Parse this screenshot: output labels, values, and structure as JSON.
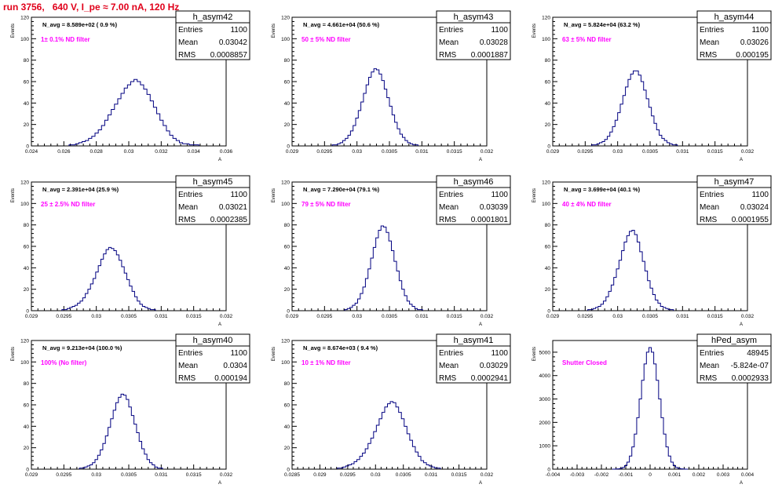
{
  "run_title": "run 3756,   640 V, I_pe ≈ 7.00 nA, 120 Hz",
  "colors": {
    "title": "#e0001a",
    "histogram": "#000080",
    "annotation": "#ff00ff",
    "axes": "#000000"
  },
  "chart_data": [
    {
      "type": "bar",
      "stat_title": "h_asym42",
      "entries": "1100",
      "mean": "0.03042",
      "rms": "0.0008857",
      "navg": "N_avg = 8.589e+02 ( 0.9 %)",
      "annotation": "1± 0.1% ND filter",
      "ylabel": "Events",
      "xlabel": "A",
      "xlim": [
        0.024,
        0.036
      ],
      "xticks": [
        "0.024",
        "0.026",
        "0.028",
        "0.03",
        "0.032",
        "0.034",
        "0.036"
      ],
      "ylim": [
        0,
        120
      ],
      "yticks": [
        "0",
        "20",
        "40",
        "60",
        "80",
        "100",
        "120"
      ],
      "bin_width": 0.0002,
      "counts": [
        1,
        1,
        2,
        3,
        4,
        5,
        7,
        9,
        12,
        15,
        19,
        24,
        29,
        34,
        39,
        44,
        49,
        54,
        57,
        60,
        62,
        60,
        57,
        53,
        48,
        42,
        36,
        30,
        24,
        19,
        14,
        10,
        7,
        5,
        3,
        2,
        2,
        1,
        1,
        1
      ]
    },
    {
      "type": "bar",
      "stat_title": "h_asym43",
      "entries": "1100",
      "mean": "0.03028",
      "rms": "0.0001887",
      "navg": "N_avg = 4.661e+04 (50.6 %)",
      "annotation": "50 ± 5% ND filter",
      "ylabel": "Events",
      "xlabel": "A",
      "xlim": [
        0.029,
        0.032
      ],
      "xticks": [
        "0.029",
        "0.0295",
        "0.03",
        "0.0305",
        "0.031",
        "0.0315",
        "0.032"
      ],
      "ylim": [
        0,
        120
      ],
      "yticks": [
        "0",
        "20",
        "40",
        "60",
        "80",
        "100",
        "120"
      ],
      "bin_width": 4e-05,
      "counts": [
        1,
        1,
        2,
        3,
        5,
        7,
        10,
        14,
        19,
        26,
        33,
        41,
        49,
        57,
        64,
        69,
        72,
        71,
        67,
        61,
        53,
        45,
        37,
        29,
        22,
        16,
        11,
        8,
        5,
        3,
        2,
        1,
        1
      ]
    },
    {
      "type": "bar",
      "stat_title": "h_asym44",
      "entries": "1100",
      "mean": "0.03026",
      "rms": "0.000195",
      "navg": "N_avg = 5.824e+04 (63.2 %)",
      "annotation": "63 ± 5% ND filter",
      "ylabel": "Events",
      "xlabel": "A",
      "xlim": [
        0.029,
        0.032
      ],
      "xticks": [
        "0.029",
        "0.0295",
        "0.03",
        "0.0305",
        "0.031",
        "0.0315",
        "0.032"
      ],
      "ylim": [
        0,
        120
      ],
      "yticks": [
        "0",
        "20",
        "40",
        "60",
        "80",
        "100",
        "120"
      ],
      "bin_width": 4e-05,
      "counts": [
        1,
        1,
        2,
        3,
        4,
        6,
        9,
        13,
        18,
        24,
        31,
        39,
        47,
        55,
        62,
        67,
        70,
        70,
        66,
        60,
        52,
        44,
        36,
        28,
        21,
        15,
        10,
        7,
        5,
        3,
        2,
        1,
        1
      ]
    },
    {
      "type": "bar",
      "stat_title": "h_asym45",
      "entries": "1100",
      "mean": "0.03021",
      "rms": "0.0002385",
      "navg": "N_avg = 2.391e+04 (25.9 %)",
      "annotation": "25 ± 2.5% ND filter",
      "ylabel": "Events",
      "xlabel": "A",
      "xlim": [
        0.029,
        0.032
      ],
      "xticks": [
        "0.029",
        "0.0295",
        "0.03",
        "0.0305",
        "0.031",
        "0.0315",
        "0.032"
      ],
      "ylim": [
        0,
        120
      ],
      "yticks": [
        "0",
        "20",
        "40",
        "60",
        "80",
        "100",
        "120"
      ],
      "bin_width": 4e-05,
      "counts": [
        1,
        1,
        2,
        3,
        4,
        5,
        7,
        9,
        12,
        16,
        20,
        25,
        30,
        36,
        42,
        48,
        53,
        57,
        59,
        58,
        56,
        52,
        47,
        41,
        35,
        29,
        23,
        18,
        13,
        9,
        6,
        4,
        3,
        2,
        1,
        1
      ]
    },
    {
      "type": "bar",
      "stat_title": "h_asym46",
      "entries": "1100",
      "mean": "0.03039",
      "rms": "0.0001801",
      "navg": "N_avg = 7.290e+04 (79.1 %)",
      "annotation": "79 ± 5% ND filter",
      "ylabel": "Events",
      "xlabel": "A",
      "xlim": [
        0.029,
        0.032
      ],
      "xticks": [
        "0.029",
        "0.0295",
        "0.03",
        "0.0305",
        "0.031",
        "0.0315",
        "0.032"
      ],
      "ylim": [
        0,
        120
      ],
      "yticks": [
        "0",
        "20",
        "40",
        "60",
        "80",
        "100",
        "120"
      ],
      "bin_width": 4e-05,
      "counts": [
        1,
        2,
        3,
        5,
        7,
        11,
        16,
        22,
        30,
        39,
        49,
        59,
        68,
        75,
        79,
        78,
        73,
        65,
        56,
        46,
        37,
        28,
        20,
        14,
        9,
        6,
        4,
        2,
        1,
        1
      ]
    },
    {
      "type": "bar",
      "stat_title": "h_asym47",
      "entries": "1100",
      "mean": "0.03024",
      "rms": "0.0001955",
      "navg": "N_avg = 3.699e+04 (40.1 %)",
      "annotation": "40 ± 4% ND filter",
      "ylabel": "Events",
      "xlabel": "A",
      "xlim": [
        0.029,
        0.032
      ],
      "xticks": [
        "0.029",
        "0.0295",
        "0.03",
        "0.0305",
        "0.031",
        "0.0315",
        "0.032"
      ],
      "ylim": [
        0,
        120
      ],
      "yticks": [
        "0",
        "20",
        "40",
        "60",
        "80",
        "100",
        "120"
      ],
      "bin_width": 4e-05,
      "counts": [
        1,
        1,
        2,
        3,
        4,
        6,
        9,
        13,
        18,
        24,
        31,
        39,
        47,
        56,
        64,
        70,
        74,
        75,
        71,
        64,
        55,
        46,
        37,
        28,
        21,
        15,
        10,
        7,
        4,
        3,
        2,
        1,
        1
      ]
    },
    {
      "type": "bar",
      "stat_title": "h_asym40",
      "entries": "1100",
      "mean": "0.0304",
      "rms": "0.000194",
      "navg": "N_avg = 9.213e+04 (100.0 %)",
      "annotation": "100% (No filter)",
      "ylabel": "Events",
      "xlabel": "A",
      "xlim": [
        0.029,
        0.032
      ],
      "xticks": [
        "0.029",
        "0.0295",
        "0.03",
        "0.0305",
        "0.031",
        "0.0315",
        "0.032"
      ],
      "ylim": [
        0,
        120
      ],
      "yticks": [
        "0",
        "20",
        "40",
        "60",
        "80",
        "100",
        "120"
      ],
      "bin_width": 4e-05,
      "counts": [
        1,
        1,
        2,
        3,
        4,
        6,
        9,
        13,
        18,
        24,
        31,
        39,
        47,
        55,
        62,
        67,
        70,
        69,
        65,
        58,
        50,
        42,
        34,
        26,
        19,
        14,
        9,
        6,
        4,
        2,
        1,
        1
      ]
    },
    {
      "type": "bar",
      "stat_title": "h_asym41",
      "entries": "1100",
      "mean": "0.03029",
      "rms": "0.0002941",
      "navg": "N_avg = 8.674e+03 ( 9.4 %)",
      "annotation": "10 ± 1% ND filter",
      "ylabel": "Events",
      "xlabel": "A",
      "xlim": [
        0.0285,
        0.032
      ],
      "xticks": [
        "0.0285",
        "0.029",
        "0.0295",
        "0.03",
        "0.0305",
        "0.031",
        "0.0315",
        "0.032"
      ],
      "ylim": [
        0,
        120
      ],
      "yticks": [
        "0",
        "20",
        "40",
        "60",
        "80",
        "100",
        "120"
      ],
      "bin_width": 5e-05,
      "counts": [
        1,
        1,
        2,
        3,
        4,
        5,
        7,
        9,
        12,
        15,
        19,
        24,
        29,
        35,
        41,
        47,
        53,
        58,
        61,
        63,
        62,
        58,
        53,
        47,
        40,
        33,
        27,
        21,
        16,
        12,
        8,
        6,
        4,
        3,
        2,
        1,
        1
      ]
    },
    {
      "type": "bar",
      "stat_title": "hPed_asym",
      "entries": "48945",
      "mean": "-5.824e-07",
      "rms": "0.0002933",
      "navg": "",
      "annotation": "Shutter Closed",
      "ylabel": "Events",
      "xlabel": "A",
      "xlim": [
        -0.004,
        0.004
      ],
      "xticks": [
        "-0.004",
        "-0.003",
        "-0.002",
        "-0.001",
        "0",
        "0.001",
        "0.002",
        "0.003",
        "0.004"
      ],
      "ylim": [
        0,
        5500
      ],
      "yticks": [
        "0",
        "1000",
        "2000",
        "3000",
        "4000",
        "5000"
      ],
      "bin_width": 0.0001,
      "counts": [
        2,
        5,
        12,
        30,
        70,
        150,
        300,
        560,
        950,
        1500,
        2200,
        3000,
        3800,
        4500,
        5000,
        5200,
        5000,
        4500,
        3800,
        3000,
        2200,
        1500,
        950,
        560,
        300,
        150,
        70,
        30,
        12,
        5,
        2
      ]
    }
  ]
}
